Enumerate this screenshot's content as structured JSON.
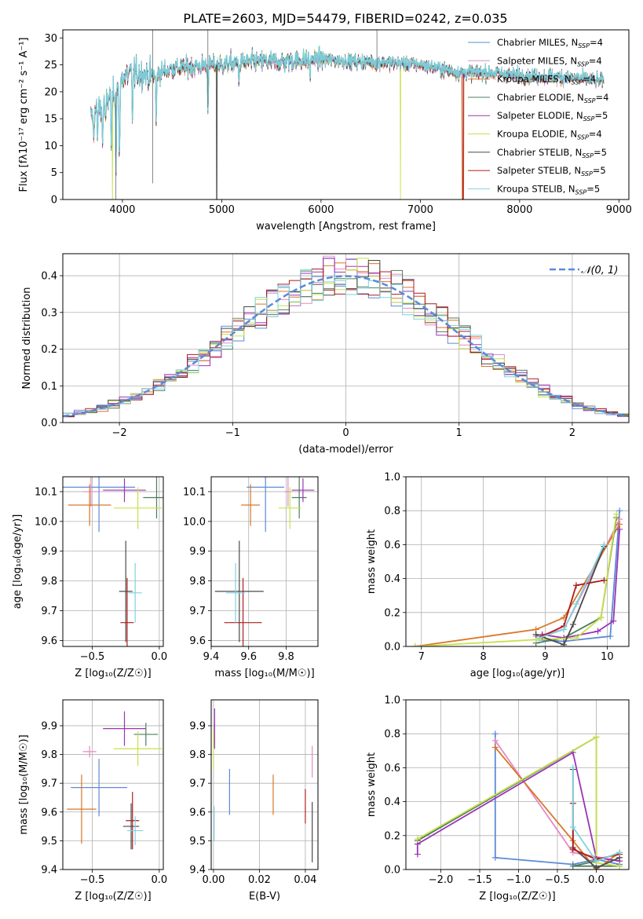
{
  "figure": {
    "title": "PLATE=2603, MJD=54479, FIBERID=0242, z=0.035"
  },
  "colors": {
    "Chabrier MILES": "#5b8ad6",
    "Salpeter MILES": "#e48ac3",
    "Kroupa MILES": "#d9772a",
    "Chabrier ELODIE": "#4d7d5e",
    "Salpeter ELODIE": "#9a35b5",
    "Kroupa ELODIE": "#c8e04a",
    "Chabrier STELIB": "#4a4a4a",
    "Salpeter STELIB": "#b01c1c",
    "Kroupa STELIB": "#7ed2de"
  },
  "chart_data": [
    {
      "id": "spectrum",
      "type": "line",
      "title": "PLATE=2603, MJD=54479, FIBERID=0242, z=0.035",
      "xlabel": "wavelength [Angstrom, rest frame]",
      "ylabel": "Flux [fλ10⁻¹⁷ erg cm⁻² s⁻¹ A⁻¹]",
      "xlim": [
        3400,
        9100
      ],
      "ylim": [
        0,
        31.5
      ],
      "xticks": [
        4000,
        5000,
        6000,
        7000,
        8000,
        9000
      ],
      "yticks": [
        0,
        5,
        10,
        15,
        20,
        25,
        30
      ],
      "legend_position": "top-right",
      "legend": [
        {
          "label": "Chabrier MILES, N",
          "sub": "SSP",
          "suffix": "=4"
        },
        {
          "label": "Salpeter MILES, N",
          "sub": "SSP",
          "suffix": "=4"
        },
        {
          "label": "Kroupa MILES, N",
          "sub": "SSP",
          "suffix": "=4"
        },
        {
          "label": "Chabrier ELODIE, N",
          "sub": "SSP",
          "suffix": "=4"
        },
        {
          "label": "Salpeter ELODIE, N",
          "sub": "SSP",
          "suffix": "=5"
        },
        {
          "label": "Kroupa ELODIE, N",
          "sub": "SSP",
          "suffix": "=4"
        },
        {
          "label": "Chabrier STELIB, N",
          "sub": "SSP",
          "suffix": "=5"
        },
        {
          "label": "Salpeter STELIB, N",
          "sub": "SSP",
          "suffix": "=5"
        },
        {
          "label": "Kroupa STELIB, N",
          "sub": "SSP",
          "suffix": "=5"
        }
      ],
      "continuum": [
        [
          3680,
          15.5
        ],
        [
          3750,
          16.8
        ],
        [
          3850,
          18.5
        ],
        [
          3950,
          21
        ],
        [
          4000,
          22.5
        ],
        [
          4100,
          23.5
        ],
        [
          4300,
          23
        ],
        [
          4500,
          24.3
        ],
        [
          4800,
          24.8
        ],
        [
          5000,
          25
        ],
        [
          5300,
          25.5
        ],
        [
          5600,
          25.6
        ],
        [
          6000,
          26
        ],
        [
          6300,
          25.6
        ],
        [
          6600,
          25.5
        ],
        [
          7000,
          25
        ],
        [
          7400,
          23.5
        ],
        [
          7700,
          23.5
        ],
        [
          8000,
          23
        ],
        [
          8300,
          22.8
        ],
        [
          8600,
          22.5
        ],
        [
          8850,
          21.8
        ]
      ],
      "dips": [
        [
          3710,
          11
        ],
        [
          3750,
          11.5
        ],
        [
          3800,
          10
        ],
        [
          3830,
          13
        ],
        [
          3890,
          9
        ],
        [
          3935,
          6
        ],
        [
          3970,
          5.5
        ],
        [
          4101,
          15
        ],
        [
          4340,
          14
        ],
        [
          4861,
          17.5
        ],
        [
          5175,
          22
        ],
        [
          5890,
          23
        ],
        [
          6563,
          24.5
        ]
      ],
      "drops": [
        {
          "model": "Kroupa MILES",
          "x": 7420
        },
        {
          "model": "Salpeter STELIB",
          "x": 7430
        },
        {
          "model": "Kroupa ELODIE",
          "x": 6800
        },
        {
          "model": "Kroupa ELODIE",
          "x": 3900
        },
        {
          "model": "Chabrier STELIB",
          "x": 4950
        }
      ]
    },
    {
      "id": "residuals",
      "type": "area",
      "xlabel": "(data-model)/error",
      "ylabel": "Normed distribution",
      "xlim": [
        -2.5,
        2.5
      ],
      "ylim": [
        0,
        0.46
      ],
      "xticks": [
        -2,
        -1,
        0,
        1,
        2
      ],
      "yticks": [
        0.0,
        0.1,
        0.2,
        0.3,
        0.4
      ],
      "grid": true,
      "normal_label": "𝒩(0, 1)",
      "bin_width": 0.1
    },
    {
      "id": "age_vs_Z",
      "type": "scatter",
      "xlabel": "Z [log₁₀(Z/Z☉)]",
      "ylabel": "age  [log₁₀(age/yr)]",
      "xlim": [
        -0.72,
        0.03
      ],
      "ylim": [
        9.58,
        10.15
      ],
      "xticks": [
        -0.5,
        0.0
      ],
      "yticks": [
        9.6,
        9.7,
        9.8,
        9.9,
        10.0,
        10.1
      ],
      "grid": true,
      "points": [
        {
          "model": "Chabrier MILES",
          "x": -0.45,
          "y": 10.115,
          "xerr": 0.27,
          "yerr": 0.15
        },
        {
          "model": "Salpeter MILES",
          "x": -0.51,
          "y": 10.1,
          "xerr": 0.06,
          "yerr": 0.05
        },
        {
          "model": "Kroupa MILES",
          "x": -0.52,
          "y": 10.055,
          "xerr": 0.16,
          "yerr": 0.07
        },
        {
          "model": "Chabrier ELODIE",
          "x": -0.02,
          "y": 10.08,
          "xerr": 0.1,
          "yerr": 0.07
        },
        {
          "model": "Salpeter ELODIE",
          "x": -0.26,
          "y": 10.105,
          "xerr": 0.16,
          "yerr": 0.04
        },
        {
          "model": "Kroupa ELODIE",
          "x": -0.16,
          "y": 10.045,
          "xerr": 0.18,
          "yerr": 0.07
        },
        {
          "model": "Chabrier STELIB",
          "x": -0.25,
          "y": 9.765,
          "xerr": 0.05,
          "yerr": 0.17
        },
        {
          "model": "Salpeter STELIB",
          "x": -0.24,
          "y": 9.66,
          "xerr": 0.05,
          "yerr": 0.15
        },
        {
          "model": "Kroupa STELIB",
          "x": -0.18,
          "y": 9.76,
          "xerr": 0.05,
          "yerr": 0.1
        }
      ]
    },
    {
      "id": "age_vs_mass",
      "type": "scatter",
      "xlabel": "mass [log₁₀(M/M☉)]",
      "ylabel": "",
      "xlim": [
        9.4,
        9.97
      ],
      "ylim": [
        9.58,
        10.15
      ],
      "xticks": [
        9.4,
        9.6,
        9.8
      ],
      "yticks": [
        9.6,
        9.7,
        9.8,
        9.9,
        10.0,
        10.1
      ],
      "grid": true,
      "points": [
        {
          "model": "Chabrier MILES",
          "x": 9.69,
          "y": 10.115,
          "xerr": 0.1,
          "yerr": 0.15
        },
        {
          "model": "Salpeter MILES",
          "x": 9.81,
          "y": 10.1,
          "xerr": 0.02,
          "yerr": 0.05
        },
        {
          "model": "Kroupa MILES",
          "x": 9.61,
          "y": 10.055,
          "xerr": 0.05,
          "yerr": 0.07
        },
        {
          "model": "Chabrier ELODIE",
          "x": 9.87,
          "y": 10.08,
          "xerr": 0.04,
          "yerr": 0.07
        },
        {
          "model": "Salpeter ELODIE",
          "x": 9.89,
          "y": 10.105,
          "xerr": 0.06,
          "yerr": 0.04
        },
        {
          "model": "Kroupa ELODIE",
          "x": 9.82,
          "y": 10.045,
          "xerr": 0.06,
          "yerr": 0.07
        },
        {
          "model": "Chabrier STELIB",
          "x": 9.55,
          "y": 9.765,
          "xerr": 0.13,
          "yerr": 0.17
        },
        {
          "model": "Salpeter STELIB",
          "x": 9.57,
          "y": 9.66,
          "xerr": 0.1,
          "yerr": 0.15
        },
        {
          "model": "Kroupa STELIB",
          "x": 9.53,
          "y": 9.76,
          "xerr": 0.05,
          "yerr": 0.1
        }
      ]
    },
    {
      "id": "massweight_vs_age",
      "type": "line",
      "xlabel": "age  [log₁₀(age/yr)]",
      "ylabel": "mass weight",
      "xlim": [
        6.75,
        10.35
      ],
      "ylim": [
        0,
        1.0
      ],
      "xticks": [
        7,
        8,
        9,
        10
      ],
      "yticks": [
        0.0,
        0.2,
        0.4,
        0.6,
        0.8,
        1.0
      ],
      "grid": true,
      "series": [
        {
          "model": "Chabrier MILES",
          "x": [
            8.85,
            9.3,
            10.05,
            10.2
          ],
          "y": [
            0.04,
            0.03,
            0.06,
            0.8
          ]
        },
        {
          "model": "Salpeter MILES",
          "x": [
            8.85,
            9.3,
            10.2
          ],
          "y": [
            0.06,
            0.1,
            0.75
          ]
        },
        {
          "model": "Kroupa MILES",
          "x": [
            6.9,
            8.85,
            9.3,
            10.2
          ],
          "y": [
            0.0,
            0.1,
            0.17,
            0.72
          ]
        },
        {
          "model": "Chabrier ELODIE",
          "x": [
            8.85,
            9.3,
            9.9,
            10.15
          ],
          "y": [
            0.02,
            0.05,
            0.17,
            0.76
          ]
        },
        {
          "model": "Salpeter ELODIE",
          "x": [
            8.95,
            9.3,
            9.85,
            10.1,
            10.2
          ],
          "y": [
            0.07,
            0.05,
            0.09,
            0.15,
            0.69
          ]
        },
        {
          "model": "Kroupa ELODIE",
          "x": [
            6.9,
            8.85,
            9.5,
            9.9,
            10.15
          ],
          "y": [
            0.0,
            0.04,
            0.05,
            0.17,
            0.78
          ]
        },
        {
          "model": "Chabrier STELIB",
          "x": [
            8.85,
            9.3,
            9.45,
            9.95
          ],
          "y": [
            0.07,
            0.01,
            0.13,
            0.59
          ]
        },
        {
          "model": "Salpeter STELIB",
          "x": [
            8.95,
            9.3,
            9.5,
            9.95
          ],
          "y": [
            0.06,
            0.12,
            0.36,
            0.39
          ]
        },
        {
          "model": "Kroupa STELIB",
          "x": [
            8.9,
            9.3,
            9.5,
            9.95
          ],
          "y": [
            0.05,
            0.1,
            0.25,
            0.6
          ]
        }
      ]
    },
    {
      "id": "mass_vs_Z",
      "type": "scatter",
      "xlabel": "Z [log₁₀(Z/Z☉)]",
      "ylabel": "mass [log₁₀(M/M☉)]",
      "xlim": [
        -0.72,
        0.03
      ],
      "ylim": [
        9.4,
        9.99
      ],
      "xticks": [
        -0.5,
        0.0
      ],
      "yticks": [
        9.4,
        9.5,
        9.6,
        9.7,
        9.8,
        9.9
      ],
      "grid": true,
      "points": [
        {
          "model": "Chabrier MILES",
          "x": -0.45,
          "y": 9.685,
          "xerr": 0.21,
          "yerr": 0.1
        },
        {
          "model": "Salpeter MILES",
          "x": -0.52,
          "y": 9.81,
          "xerr": 0.05,
          "yerr": 0.02
        },
        {
          "model": "Kroupa MILES",
          "x": -0.58,
          "y": 9.61,
          "xerr": 0.11,
          "yerr": 0.12
        },
        {
          "model": "Chabrier ELODIE",
          "x": -0.1,
          "y": 9.87,
          "xerr": 0.09,
          "yerr": 0.04
        },
        {
          "model": "Salpeter ELODIE",
          "x": -0.26,
          "y": 9.89,
          "xerr": 0.16,
          "yerr": 0.06
        },
        {
          "model": "Kroupa ELODIE",
          "x": -0.16,
          "y": 9.82,
          "xerr": 0.18,
          "yerr": 0.06
        },
        {
          "model": "Chabrier STELIB",
          "x": -0.21,
          "y": 9.55,
          "xerr": 0.06,
          "yerr": 0.08
        },
        {
          "model": "Salpeter STELIB",
          "x": -0.2,
          "y": 9.57,
          "xerr": 0.05,
          "yerr": 0.1
        },
        {
          "model": "Kroupa STELIB",
          "x": -0.18,
          "y": 9.535,
          "xerr": 0.06,
          "yerr": 0.05
        }
      ]
    },
    {
      "id": "mass_vs_EBV",
      "type": "scatter",
      "xlabel": "E(B-V)",
      "ylabel": "",
      "xlim": [
        -0.001,
        0.0455
      ],
      "ylim": [
        9.4,
        9.99
      ],
      "xticks": [
        0.0,
        0.02,
        0.04
      ],
      "yticks": [
        9.4,
        9.5,
        9.6,
        9.7,
        9.8,
        9.9
      ],
      "grid": true,
      "points": [
        {
          "model": "Chabrier MILES",
          "x": 0.007,
          "y": 9.67,
          "xerr": 0.0,
          "yerr": 0.08
        },
        {
          "model": "Salpeter MILES",
          "x": 0.043,
          "y": 9.775,
          "xerr": 0.0,
          "yerr": 0.055
        },
        {
          "model": "Kroupa MILES",
          "x": 0.026,
          "y": 9.66,
          "xerr": 0.0,
          "yerr": 0.07
        },
        {
          "model": "Chabrier ELODIE",
          "x": 0.0005,
          "y": 9.87,
          "xerr": 0.0,
          "yerr": 0.04
        },
        {
          "model": "Salpeter ELODIE",
          "x": 0.0005,
          "y": 9.89,
          "xerr": 0.0,
          "yerr": 0.07
        },
        {
          "model": "Kroupa ELODIE",
          "x": 0.0,
          "y": 9.815,
          "xerr": 0.0,
          "yerr": 0.07
        },
        {
          "model": "Chabrier STELIB",
          "x": 0.043,
          "y": 9.53,
          "xerr": 0.0,
          "yerr": 0.105
        },
        {
          "model": "Salpeter STELIB",
          "x": 0.04,
          "y": 9.62,
          "xerr": 0.0,
          "yerr": 0.06
        },
        {
          "model": "Kroupa STELIB",
          "x": 0.0003,
          "y": 9.56,
          "xerr": 0.0,
          "yerr": 0.06
        }
      ]
    },
    {
      "id": "massweight_vs_Z",
      "type": "line",
      "xlabel": "Z [log₁₀(Z/Z☉)]",
      "ylabel": "mass weight",
      "xlim": [
        -2.45,
        0.42
      ],
      "ylim": [
        0,
        1.0
      ],
      "xticks": [
        -2.0,
        -1.5,
        -1.0,
        -0.5,
        0.0
      ],
      "yticks": [
        0.0,
        0.2,
        0.4,
        0.6,
        0.8,
        1.0
      ],
      "grid": true,
      "series": [
        {
          "model": "Chabrier MILES",
          "x": [
            -1.3,
            -1.3,
            -0.3,
            0.0,
            0.3
          ],
          "y": [
            0.8,
            0.07,
            0.03,
            0.06,
            0.03
          ]
        },
        {
          "model": "Salpeter MILES",
          "x": [
            -1.3,
            -0.3,
            0.3
          ],
          "y": [
            0.76,
            0.1,
            0.05
          ]
        },
        {
          "model": "Kroupa MILES",
          "x": [
            -1.3,
            -0.3,
            0.0,
            0.3
          ],
          "y": [
            0.72,
            0.17,
            0.0,
            0.1
          ]
        },
        {
          "model": "Chabrier ELODIE",
          "x": [
            -2.3,
            0.0,
            0.0,
            -0.3,
            0.3
          ],
          "y": [
            0.17,
            0.78,
            0.05,
            0.02,
            0.02
          ]
        },
        {
          "model": "Salpeter ELODIE",
          "x": [
            -2.3,
            -2.3,
            -0.3,
            0.0,
            0.3
          ],
          "y": [
            0.09,
            0.15,
            0.69,
            0.07,
            0.05
          ]
        },
        {
          "model": "Kroupa ELODIE",
          "x": [
            -2.3,
            0.0,
            0.0,
            0.3
          ],
          "y": [
            0.18,
            0.78,
            0.04,
            0.02
          ]
        },
        {
          "model": "Chabrier STELIB",
          "x": [
            -0.3,
            -0.3,
            0.0,
            0.3
          ],
          "y": [
            0.59,
            0.13,
            0.01,
            0.07
          ]
        },
        {
          "model": "Salpeter STELIB",
          "x": [
            -0.3,
            -0.3,
            0.0,
            0.3
          ],
          "y": [
            0.39,
            0.12,
            0.06,
            0.09
          ]
        },
        {
          "model": "Kroupa STELIB",
          "x": [
            -0.3,
            -0.3,
            0.0,
            0.3
          ],
          "y": [
            0.6,
            0.25,
            0.05,
            0.1
          ]
        }
      ]
    }
  ]
}
